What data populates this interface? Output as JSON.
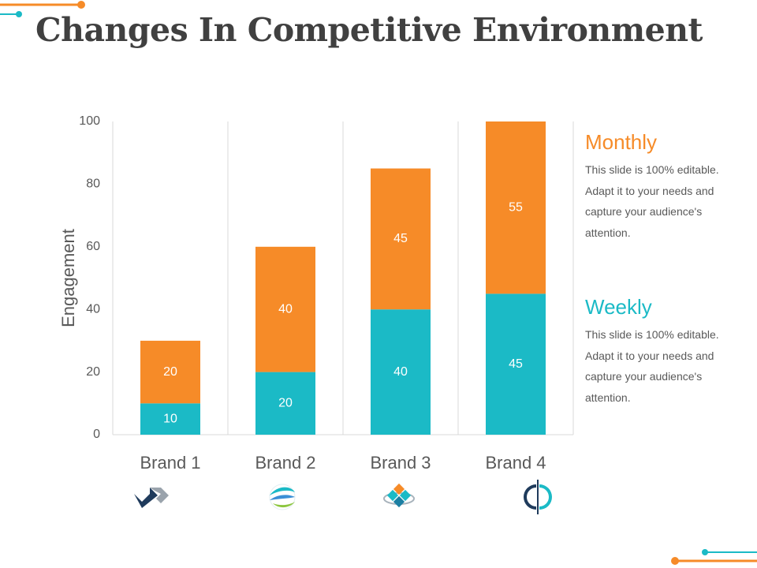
{
  "slide": {
    "title": "Changes In Competitive Environment"
  },
  "colors": {
    "monthly": "#F68B28",
    "weekly": "#1BBAC6",
    "text": "#595959",
    "grid": "#D9D9D9",
    "navy": "#1F3B5C",
    "green": "#8CC63F"
  },
  "legend": {
    "monthly": {
      "title": "Monthly",
      "text": "This slide is 100% editable. Adapt it to your needs and capture your audience's attention."
    },
    "weekly": {
      "title": "Weekly",
      "text": "This slide is 100% editable. Adapt it to your needs and capture your audience's attention."
    }
  },
  "chart_data": {
    "type": "bar",
    "stacked": true,
    "title": "Changes In Competitive Environment",
    "xlabel": "",
    "ylabel": "Engagement",
    "ylim": [
      0,
      100
    ],
    "yticks": [
      0,
      20,
      40,
      60,
      80,
      100
    ],
    "categories": [
      "Brand 1",
      "Brand 2",
      "Brand 3",
      "Brand 4"
    ],
    "series": [
      {
        "name": "Weekly",
        "values": [
          10,
          20,
          40,
          45
        ]
      },
      {
        "name": "Monthly",
        "values": [
          20,
          40,
          45,
          55
        ]
      }
    ],
    "category_icons": [
      "chevron-logo-icon",
      "globe-swoosh-icon",
      "diamond-cluster-icon",
      "split-circle-icon"
    ]
  }
}
